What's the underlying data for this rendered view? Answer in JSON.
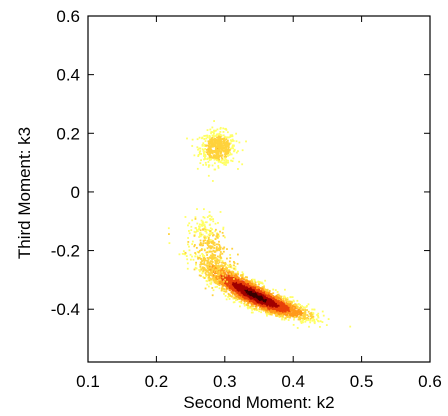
{
  "chart_data": {
    "type": "heatmap",
    "subtype": "2D density scatter",
    "title": "",
    "xlabel": "Second Moment: k2",
    "ylabel": "Third Moment: k3",
    "xlim": [
      0.1,
      0.6
    ],
    "ylim": [
      -0.58,
      0.6
    ],
    "xticks": [
      0.1,
      0.2,
      0.3,
      0.4,
      0.5,
      0.6
    ],
    "xtick_labels": [
      "0.1",
      "0.2",
      "0.3",
      "0.4",
      "0.5",
      "0.6"
    ],
    "yticks": [
      -0.4,
      -0.2,
      0,
      0.2,
      0.4,
      0.6
    ],
    "ytick_labels": [
      "-0.4",
      "-0.2",
      "0",
      "0.2",
      "0.4",
      "0.6"
    ],
    "grid": false,
    "colormap": [
      "#ffff66",
      "#ffd23c",
      "#ff9a1a",
      "#e8420a",
      "#a00000",
      "#3a0000"
    ],
    "clusters": [
      {
        "center": [
          0.29,
          0.15
        ],
        "spread": [
          0.013,
          0.028
        ],
        "density": "low",
        "extent_x": [
          0.25,
          0.33
        ],
        "extent_y": [
          0.07,
          0.24
        ]
      },
      {
        "center": [
          0.345,
          -0.355
        ],
        "spread": [
          0.035,
          0.055
        ],
        "density": "high",
        "orientation": "diagonal down-right",
        "extent_x": [
          0.25,
          0.44
        ],
        "extent_y": [
          -0.47,
          -0.08
        ]
      }
    ]
  }
}
